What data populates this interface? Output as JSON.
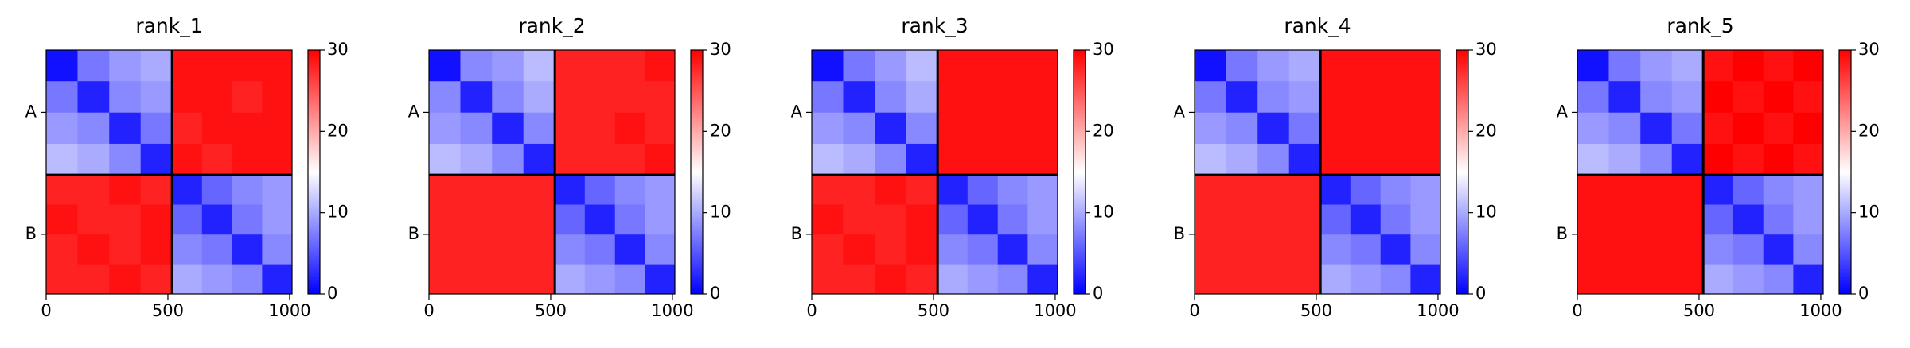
{
  "chart_data": [
    {
      "type": "heatmap",
      "title": "rank_1",
      "cmap": [
        "#0000ff",
        "#ffffff",
        "#ff0000"
      ],
      "chain_boundaries": [
        517
      ],
      "x_bins": [
        0,
        129,
        259,
        388,
        517,
        640,
        764,
        887,
        1010
      ],
      "y_bins": [
        0,
        129,
        259,
        388,
        517,
        640,
        764,
        887,
        1010
      ],
      "xlim": [
        0,
        1010
      ],
      "ylim": [
        1010,
        0
      ],
      "xticks": [
        0,
        500,
        1000
      ],
      "yticks": [
        {
          "value": 258,
          "label": "A"
        },
        {
          "value": 763,
          "label": "B"
        }
      ],
      "clim": [
        0,
        30
      ],
      "cticks": [
        0,
        10,
        20,
        30
      ],
      "values": [
        [
          1,
          7,
          9,
          10,
          29,
          29,
          29,
          29
        ],
        [
          7,
          2,
          8,
          9,
          29,
          29,
          28,
          29
        ],
        [
          9,
          8,
          2,
          7,
          28,
          29,
          29,
          29
        ],
        [
          11,
          10,
          8,
          2,
          29,
          28,
          29,
          29
        ],
        [
          28,
          28,
          29,
          28,
          2,
          6,
          8,
          9
        ],
        [
          29,
          28,
          28,
          29,
          6,
          2,
          7,
          9
        ],
        [
          28,
          29,
          28,
          29,
          8,
          7,
          2,
          8
        ],
        [
          28,
          28,
          29,
          28,
          10,
          9,
          8,
          2
        ]
      ]
    },
    {
      "type": "heatmap",
      "title": "rank_2",
      "cmap": [
        "#0000ff",
        "#ffffff",
        "#ff0000"
      ],
      "chain_boundaries": [
        517
      ],
      "x_bins": [
        0,
        129,
        259,
        388,
        517,
        640,
        764,
        887,
        1010
      ],
      "y_bins": [
        0,
        129,
        259,
        388,
        517,
        640,
        764,
        887,
        1010
      ],
      "xlim": [
        0,
        1010
      ],
      "ylim": [
        1010,
        0
      ],
      "xticks": [
        0,
        500,
        1000
      ],
      "yticks": [
        {
          "value": 258,
          "label": "A"
        },
        {
          "value": 763,
          "label": "B"
        }
      ],
      "clim": [
        0,
        30
      ],
      "cticks": [
        0,
        10,
        20,
        30
      ],
      "values": [
        [
          1,
          8,
          9,
          11,
          28,
          28,
          28,
          29
        ],
        [
          8,
          2,
          8,
          10,
          28,
          28,
          28,
          28
        ],
        [
          9,
          8,
          2,
          8,
          28,
          28,
          29,
          28
        ],
        [
          11,
          10,
          8,
          2,
          28,
          28,
          28,
          29
        ],
        [
          28,
          28,
          28,
          28,
          2,
          6,
          8,
          9
        ],
        [
          28,
          28,
          28,
          28,
          6,
          2,
          7,
          9
        ],
        [
          28,
          28,
          28,
          28,
          8,
          7,
          2,
          8
        ],
        [
          28,
          28,
          28,
          28,
          10,
          9,
          8,
          2
        ]
      ]
    },
    {
      "type": "heatmap",
      "title": "rank_3",
      "cmap": [
        "#0000ff",
        "#ffffff",
        "#ff0000"
      ],
      "chain_boundaries": [
        517
      ],
      "x_bins": [
        0,
        129,
        259,
        388,
        517,
        640,
        764,
        887,
        1010
      ],
      "y_bins": [
        0,
        129,
        259,
        388,
        517,
        640,
        764,
        887,
        1010
      ],
      "xlim": [
        0,
        1010
      ],
      "ylim": [
        1010,
        0
      ],
      "xticks": [
        0,
        500,
        1000
      ],
      "yticks": [
        {
          "value": 258,
          "label": "A"
        },
        {
          "value": 763,
          "label": "B"
        }
      ],
      "clim": [
        0,
        30
      ],
      "cticks": [
        0,
        10,
        20,
        30
      ],
      "values": [
        [
          1,
          7,
          9,
          11,
          29,
          29,
          29,
          29
        ],
        [
          7,
          2,
          8,
          10,
          29,
          29,
          29,
          29
        ],
        [
          9,
          8,
          2,
          8,
          29,
          29,
          29,
          29
        ],
        [
          11,
          10,
          8,
          2,
          29,
          29,
          29,
          29
        ],
        [
          28,
          28,
          29,
          28,
          2,
          6,
          8,
          9
        ],
        [
          29,
          28,
          28,
          29,
          6,
          2,
          7,
          9
        ],
        [
          28,
          29,
          28,
          29,
          8,
          7,
          2,
          8
        ],
        [
          28,
          28,
          29,
          28,
          10,
          9,
          8,
          2
        ]
      ]
    },
    {
      "type": "heatmap",
      "title": "rank_4",
      "cmap": [
        "#0000ff",
        "#ffffff",
        "#ff0000"
      ],
      "chain_boundaries": [
        517
      ],
      "x_bins": [
        0,
        129,
        259,
        388,
        517,
        640,
        764,
        887,
        1010
      ],
      "y_bins": [
        0,
        129,
        259,
        388,
        517,
        640,
        764,
        887,
        1010
      ],
      "xlim": [
        0,
        1010
      ],
      "ylim": [
        1010,
        0
      ],
      "xticks": [
        0,
        500,
        1000
      ],
      "yticks": [
        {
          "value": 258,
          "label": "A"
        },
        {
          "value": 763,
          "label": "B"
        }
      ],
      "clim": [
        0,
        30
      ],
      "cticks": [
        0,
        10,
        20,
        30
      ],
      "values": [
        [
          1,
          7,
          9,
          10,
          29,
          29,
          29,
          29
        ],
        [
          7,
          2,
          8,
          9,
          29,
          29,
          29,
          29
        ],
        [
          9,
          8,
          2,
          7,
          29,
          29,
          29,
          29
        ],
        [
          11,
          10,
          8,
          2,
          29,
          29,
          29,
          29
        ],
        [
          28,
          28,
          28,
          28,
          2,
          6,
          8,
          9
        ],
        [
          28,
          28,
          28,
          28,
          6,
          2,
          7,
          9
        ],
        [
          28,
          28,
          28,
          28,
          8,
          7,
          2,
          8
        ],
        [
          28,
          28,
          28,
          28,
          10,
          9,
          8,
          2
        ]
      ]
    },
    {
      "type": "heatmap",
      "title": "rank_5",
      "cmap": [
        "#0000ff",
        "#ffffff",
        "#ff0000"
      ],
      "chain_boundaries": [
        517
      ],
      "x_bins": [
        0,
        129,
        259,
        388,
        517,
        640,
        764,
        887,
        1010
      ],
      "y_bins": [
        0,
        129,
        259,
        388,
        517,
        640,
        764,
        887,
        1010
      ],
      "xlim": [
        0,
        1010
      ],
      "ylim": [
        1010,
        0
      ],
      "xticks": [
        0,
        500,
        1000
      ],
      "yticks": [
        {
          "value": 258,
          "label": "A"
        },
        {
          "value": 763,
          "label": "B"
        }
      ],
      "clim": [
        0,
        30
      ],
      "cticks": [
        0,
        10,
        20,
        30
      ],
      "values": [
        [
          1,
          7,
          9,
          10,
          29,
          30,
          29,
          30
        ],
        [
          7,
          2,
          8,
          9,
          30,
          29,
          30,
          29
        ],
        [
          9,
          8,
          2,
          7,
          29,
          30,
          29,
          30
        ],
        [
          11,
          10,
          8,
          2,
          30,
          29,
          30,
          29
        ],
        [
          29,
          29,
          29,
          29,
          2,
          6,
          8,
          9
        ],
        [
          29,
          29,
          29,
          29,
          6,
          2,
          7,
          9
        ],
        [
          29,
          29,
          29,
          29,
          8,
          7,
          2,
          8
        ],
        [
          29,
          29,
          29,
          29,
          10,
          9,
          8,
          2
        ]
      ]
    }
  ]
}
